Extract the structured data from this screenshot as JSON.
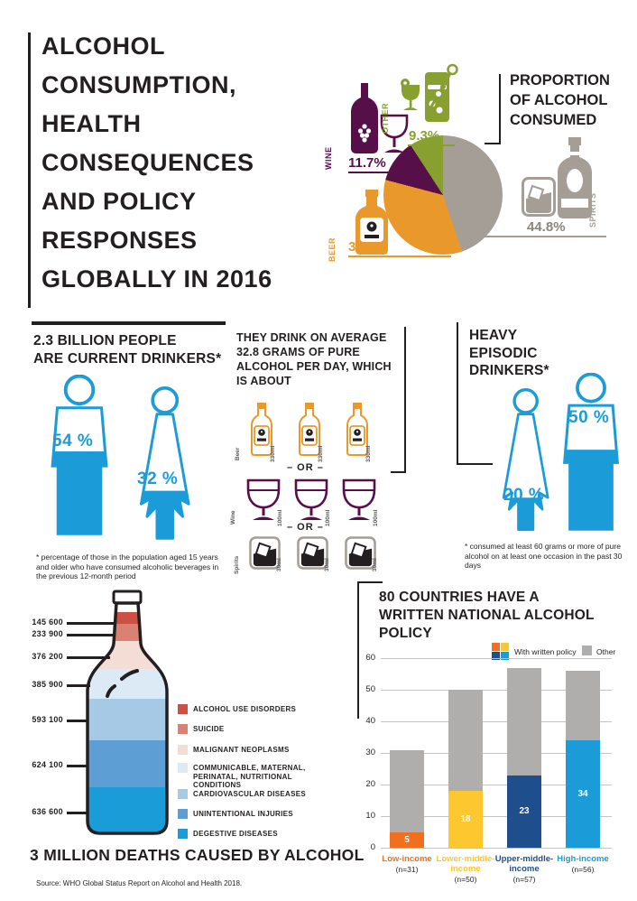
{
  "palette": {
    "blue": "#1b9cd9",
    "pie_gray": "#a49e96",
    "pie_orange": "#e9992b",
    "pie_purple": "#570f4a",
    "pie_green": "#87a02f",
    "bar_gray": "#b0adad",
    "ink": "#231f20"
  },
  "header": {
    "title_lines": [
      "ALCOHOL",
      "CONSUMPTION,",
      "HEALTH",
      "CONSEQUENCES",
      "AND POLICY",
      "RESPONSES",
      "GLOBALLY IN 2016"
    ]
  },
  "pie_section": {
    "heading_lines": [
      "PROPORTION",
      "OF ALCOHOL",
      "CONSUMED"
    ],
    "slices": [
      {
        "label": "SPIRITS",
        "pct": 44.8,
        "display": "44.8%",
        "color": "#a49e96"
      },
      {
        "label": "BEER",
        "pct": 34.3,
        "display": "34.3%",
        "color": "#e9992b"
      },
      {
        "label": "WINE",
        "pct": 11.7,
        "display": "11.7%",
        "color": "#570f4a"
      },
      {
        "label": "OTHER",
        "pct": 9.3,
        "display": "9.3%",
        "color": "#87a02f"
      }
    ]
  },
  "drinkers": {
    "heading_lines": [
      "2.3 BILLION PEOPLE",
      "ARE CURRENT DRINKERS*"
    ],
    "male_pct": "54 %",
    "female_pct": "32 %",
    "footnote": "* percentage of those in the population aged 15 years and older who have consumed alcoholic beverages in the previous 12-month period"
  },
  "average": {
    "heading_lines": [
      "THEY DRINK ON AVERAGE",
      "32.8 GRAMS OF PURE",
      "ALCOHOL PER DAY, WHICH",
      "IS ABOUT"
    ],
    "beer_label": "Beer",
    "beer_vol": "330ml",
    "wine_label": "Wine",
    "wine_vol": "100ml",
    "spirits_label": "Spirits",
    "spirits_vol": "30ml",
    "or": "– OR –"
  },
  "heavy": {
    "heading_lines": [
      "HEAVY",
      "EPISODIC",
      "DRINKERS*"
    ],
    "female_pct": "20 %",
    "male_pct": "50 %",
    "footnote": "* consumed at least 60 grams or more of pure alcohol on at least one occasion in the past 30 days"
  },
  "deaths": {
    "title": "3 MILLION DEATHS CAUSED BY ALCOHOL",
    "layers": [
      {
        "value": "145 600",
        "label": "ALCOHOL USE DISORDERS",
        "color": "#cc5144"
      },
      {
        "value": "233 900",
        "label": "SUICIDE",
        "color": "#d98173"
      },
      {
        "value": "376 200",
        "label": "MALIGNANT NEOPLASMS",
        "color": "#f3ddd4"
      },
      {
        "value": "385 900",
        "label": "COMMUNICABLE, MATERNAL, PERINATAL, NUTRITIONAL CONDITIONS",
        "color": "#dceaf6"
      },
      {
        "value": "593 100",
        "label": "CARDIOVASCULAR DISEASES",
        "color": "#a6c9e5"
      },
      {
        "value": "624 100",
        "label": "UNINTENTIONAL INJURIES",
        "color": "#5d9fd4"
      },
      {
        "value": "636 600",
        "label": "DEGESTIVE DISEASES",
        "color": "#199cd8"
      }
    ]
  },
  "policy": {
    "heading_lines": [
      "80 COUNTRIES HAVE A",
      "WRITTEN NATIONAL ALCOHOL",
      "POLICY"
    ],
    "legend": {
      "with_policy": "With written policy",
      "other": "Other"
    },
    "legend_colors": [
      "#f07020",
      "#fdc72f",
      "#1f4e8c",
      "#1b9cd9"
    ],
    "other_color": "#b0adad",
    "yticks": [
      0,
      10,
      20,
      30,
      40,
      50,
      60
    ],
    "bars": [
      {
        "name": "Low-income",
        "n": "(n=31)",
        "with_policy": 5,
        "total": 31,
        "color": "#f07020"
      },
      {
        "name": "Lower-middle-income",
        "n": "(n=50)",
        "with_policy": 18,
        "total": 50,
        "color": "#fdc72f"
      },
      {
        "name": "Upper-middle-income",
        "n": "(n=57)",
        "with_policy": 23,
        "total": 57,
        "color": "#1f4e8c"
      },
      {
        "name": "High-income",
        "n": "(n=56)",
        "with_policy": 34,
        "total": 56,
        "color": "#1b9cd9"
      }
    ]
  },
  "source": "Source: WHO Global Status Report on Alcohol and Health 2018.",
  "chart_data": [
    {
      "type": "pie",
      "title": "PROPORTION OF ALCOHOL CONSUMED",
      "labels": [
        "SPIRITS",
        "BEER",
        "WINE",
        "OTHER"
      ],
      "values": [
        44.8,
        34.3,
        11.7,
        9.3
      ],
      "unit": "%",
      "colors": [
        "#a49e96",
        "#e9992b",
        "#570f4a",
        "#87a02f"
      ],
      "start": "12 o'clock, clockwise"
    },
    {
      "type": "bar",
      "stacked": true,
      "title": "80 COUNTRIES HAVE A WRITTEN NATIONAL ALCOHOL POLICY",
      "categories": [
        "Low-income (n=31)",
        "Lower-middle-income (n=50)",
        "Upper-middle-income (n=57)",
        "High-income (n=56)"
      ],
      "series": [
        {
          "name": "With written policy",
          "values": [
            5,
            18,
            23,
            34
          ]
        },
        {
          "name": "Other",
          "values": [
            26,
            32,
            34,
            22
          ]
        }
      ],
      "ylim": [
        0,
        60
      ],
      "grid": true,
      "legend_position": "top-right"
    },
    {
      "type": "bar",
      "subtype": "bottle-shaped stacked figure",
      "title": "3 MILLION DEATHS CAUSED BY ALCOHOL",
      "categories": [
        "ALCOHOL USE DISORDERS",
        "SUICIDE",
        "MALIGNANT NEOPLASMS",
        "COMMUNICABLE, MATERNAL, PERINATAL, NUTRITIONAL CONDITIONS",
        "CARDIOVASCULAR DISEASES",
        "UNINTENTIONAL INJURIES",
        "DEGESTIVE DISEASES"
      ],
      "values": [
        145600,
        233900,
        376200,
        385900,
        593100,
        624100,
        636600
      ]
    }
  ]
}
